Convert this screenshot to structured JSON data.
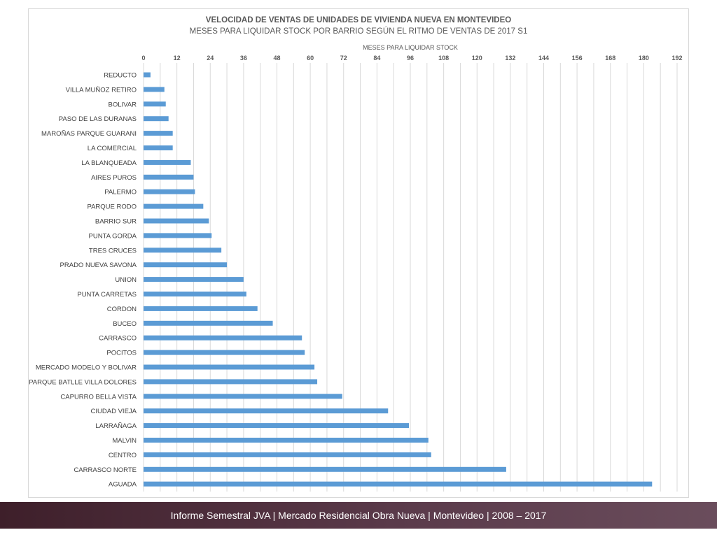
{
  "chart_data": {
    "type": "bar",
    "orientation": "horizontal",
    "title": "VELOCIDAD DE VENTAS DE UNIDADES DE VIVIENDA NUEVA EN MONTEVIDEO",
    "subtitle": "MESES PARA LIQUIDAR STOCK POR BARRIO SEGÚN EL RITMO DE VENTAS DE 2017 S1",
    "xlabel": "MESES PARA LIQUIDAR STOCK",
    "ylabel": "",
    "xlim": [
      0,
      192
    ],
    "xticks": [
      "0",
      "12",
      "24",
      "36",
      "48",
      "60",
      "72",
      "84",
      "96",
      "108",
      "120",
      "132",
      "144",
      "156",
      "168",
      "180",
      "192"
    ],
    "axis_position": "top",
    "grid": true,
    "bar_color": "#5b9bd5",
    "categories": [
      "REDUCTO",
      "VILLA MUÑOZ RETIRO",
      "BOLIVAR",
      "PASO DE LAS DURANAS",
      "MAROÑAS PARQUE GUARANI",
      "LA COMERCIAL",
      "LA BLANQUEADA",
      "AIRES PUROS",
      "PALERMO",
      "PARQUE RODO",
      "BARRIO SUR",
      "PUNTA GORDA",
      "TRES CRUCES",
      "PRADO NUEVA SAVONA",
      "UNION",
      "PUNTA CARRETAS",
      "CORDON",
      "BUCEO",
      "CARRASCO",
      "POCITOS",
      "MERCADO MODELO Y BOLIVAR",
      "PARQUE BATLLE VILLA DOLORES",
      "CAPURRO BELLA VISTA",
      "CIUDAD VIEJA",
      "LARRAÑAGA",
      "MALVIN",
      "CENTRO",
      "CARRASCO NORTE",
      "AGUADA"
    ],
    "values": [
      2.5,
      7.5,
      8,
      9,
      10.5,
      10.5,
      17,
      18,
      18.5,
      21.5,
      23.5,
      24.5,
      28,
      30,
      36,
      37,
      41,
      46.5,
      57,
      58,
      61.5,
      62.5,
      71.5,
      88,
      95.5,
      102.5,
      103.5,
      130.5,
      183
    ]
  },
  "footer": {
    "text": "Informe Semestral JVA | Mercado Residencial Obra Nueva | Montevideo | 2008 – 2017"
  }
}
